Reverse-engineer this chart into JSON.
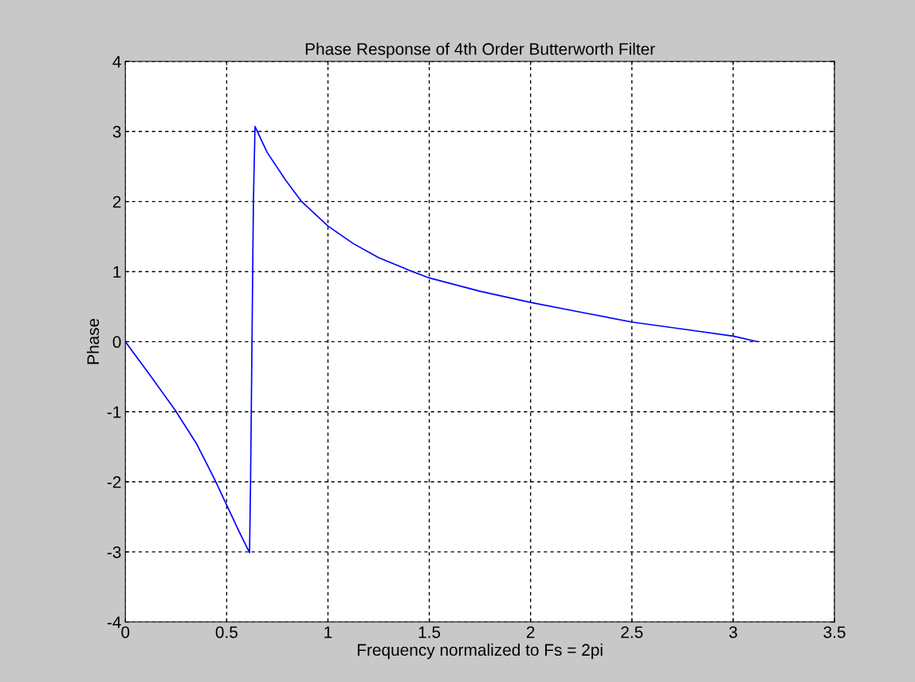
{
  "chart_data": {
    "type": "line",
    "title": "Phase Response of 4th Order Butterworth Filter",
    "xlabel": "Frequency normalized to Fs = 2pi",
    "ylabel": "Phase",
    "series": [
      {
        "color": "#0000ff",
        "x": [
          0,
          0.12,
          0.244,
          0.35,
          0.44,
          0.5,
          0.56,
          0.613,
          0.618,
          0.625,
          0.632,
          0.64,
          0.7,
          0.79,
          0.87,
          1.0,
          1.125,
          1.25,
          1.4,
          1.5,
          1.75,
          2.0,
          2.25,
          2.5,
          2.75,
          3.0,
          3.12
        ],
        "values": [
          0,
          -0.47,
          -0.97,
          -1.45,
          -1.96,
          -2.33,
          -2.7,
          -3.01,
          -2.0,
          0.0,
          2.0,
          3.07,
          2.7,
          2.31,
          2.0,
          1.65,
          1.4,
          1.2,
          1.02,
          0.91,
          0.72,
          0.56,
          0.42,
          0.28,
          0.18,
          0.08,
          0.0
        ]
      }
    ],
    "xlim": [
      0,
      3.5
    ],
    "ylim": [
      -4,
      4
    ],
    "xticks": [
      0,
      0.5,
      1,
      1.5,
      2,
      2.5,
      3,
      3.5
    ],
    "yticks": [
      -4,
      -3,
      -2,
      -1,
      0,
      1,
      2,
      3,
      4
    ],
    "grid": true,
    "line_style": "solid",
    "marker": "none"
  }
}
